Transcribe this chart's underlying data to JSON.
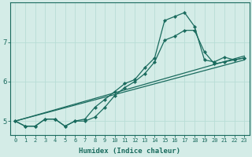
{
  "xlabel": "Humidex (Indice chaleur)",
  "bg_color": "#d4ece7",
  "line_color": "#1a6b5e",
  "grid_color": "#c8e4de",
  "xlim": [
    -0.5,
    23.5
  ],
  "ylim": [
    4.65,
    8.0
  ],
  "yticks": [
    5,
    6,
    7
  ],
  "xticks": [
    0,
    1,
    2,
    3,
    4,
    5,
    6,
    7,
    8,
    9,
    10,
    11,
    12,
    13,
    14,
    15,
    16,
    17,
    18,
    19,
    20,
    21,
    22,
    23
  ],
  "series": [
    {
      "x": [
        0,
        1,
        2,
        3,
        4,
        5,
        6,
        7,
        8,
        9,
        10,
        11,
        12,
        13,
        14,
        15,
        16,
        17,
        18,
        19,
        20,
        21,
        22,
        23
      ],
      "y": [
        5.0,
        4.87,
        4.87,
        5.05,
        5.05,
        4.87,
        5.0,
        5.05,
        5.35,
        5.55,
        5.75,
        5.95,
        6.05,
        6.35,
        6.6,
        7.55,
        7.65,
        7.75,
        7.4,
        6.55,
        6.5,
        6.62,
        6.55,
        6.6
      ],
      "markers": true
    },
    {
      "x": [
        0,
        1,
        2,
        3,
        4,
        5,
        6,
        7,
        8,
        9,
        10,
        11,
        12,
        13,
        14,
        15,
        16,
        17,
        18,
        19,
        20,
        21,
        22,
        23
      ],
      "y": [
        5.0,
        4.87,
        4.87,
        5.05,
        5.05,
        4.87,
        5.0,
        5.0,
        5.1,
        5.35,
        5.65,
        5.85,
        6.0,
        6.2,
        6.5,
        7.05,
        7.15,
        7.3,
        7.3,
        6.75,
        6.45,
        6.5,
        6.55,
        6.6
      ],
      "markers": true
    },
    {
      "x": [
        0,
        23
      ],
      "y": [
        5.0,
        6.65
      ],
      "markers": false
    },
    {
      "x": [
        0,
        23
      ],
      "y": [
        5.0,
        6.55
      ],
      "markers": false
    }
  ]
}
